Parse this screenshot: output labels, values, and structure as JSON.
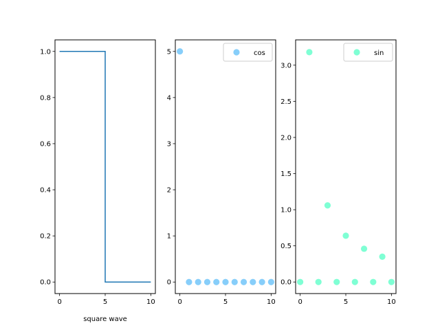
{
  "chart_data": [
    {
      "type": "line",
      "xlabel": "square wave",
      "ylabel": "",
      "xlim": [
        -0.5,
        10.5
      ],
      "ylim": [
        -0.05,
        1.05
      ],
      "xticks": [
        0,
        5,
        10
      ],
      "yticks": [
        0.0,
        0.2,
        0.4,
        0.6,
        0.8,
        1.0
      ],
      "grid": false,
      "series": [
        {
          "color": "#1f77b4",
          "drawstyle": "steps",
          "x": [
            0,
            5,
            5,
            10
          ],
          "y": [
            1.0,
            1.0,
            0.0,
            0.0
          ]
        }
      ]
    },
    {
      "type": "scatter",
      "xlabel": "",
      "ylabel": "",
      "xlim": [
        -0.5,
        10.5
      ],
      "ylim": [
        -0.25,
        5.25
      ],
      "xticks": [
        0,
        5,
        10
      ],
      "yticks": [
        0,
        1,
        2,
        3,
        4,
        5
      ],
      "grid": false,
      "legend": "top-right",
      "series": [
        {
          "name": "cos",
          "color": "#87cefa",
          "x": [
            0,
            1,
            2,
            3,
            4,
            5,
            6,
            7,
            8,
            9,
            10
          ],
          "y": [
            5,
            0,
            0,
            0,
            0,
            0,
            0,
            0,
            0,
            0,
            0
          ]
        }
      ]
    },
    {
      "type": "scatter",
      "xlabel": "",
      "ylabel": "",
      "xlim": [
        -0.5,
        10.5
      ],
      "ylim": [
        -0.16,
        3.35
      ],
      "xticks": [
        0,
        5,
        10
      ],
      "yticks": [
        0.0,
        0.5,
        1.0,
        1.5,
        2.0,
        2.5,
        3.0
      ],
      "grid": false,
      "legend": "top-right",
      "series": [
        {
          "name": "sin",
          "color": "#7fffd4",
          "x": [
            0,
            1,
            2,
            3,
            4,
            5,
            6,
            7,
            8,
            9,
            10
          ],
          "y": [
            0,
            3.18,
            0,
            1.06,
            0,
            0.64,
            0,
            0.46,
            0,
            0.35,
            0
          ]
        }
      ]
    }
  ]
}
